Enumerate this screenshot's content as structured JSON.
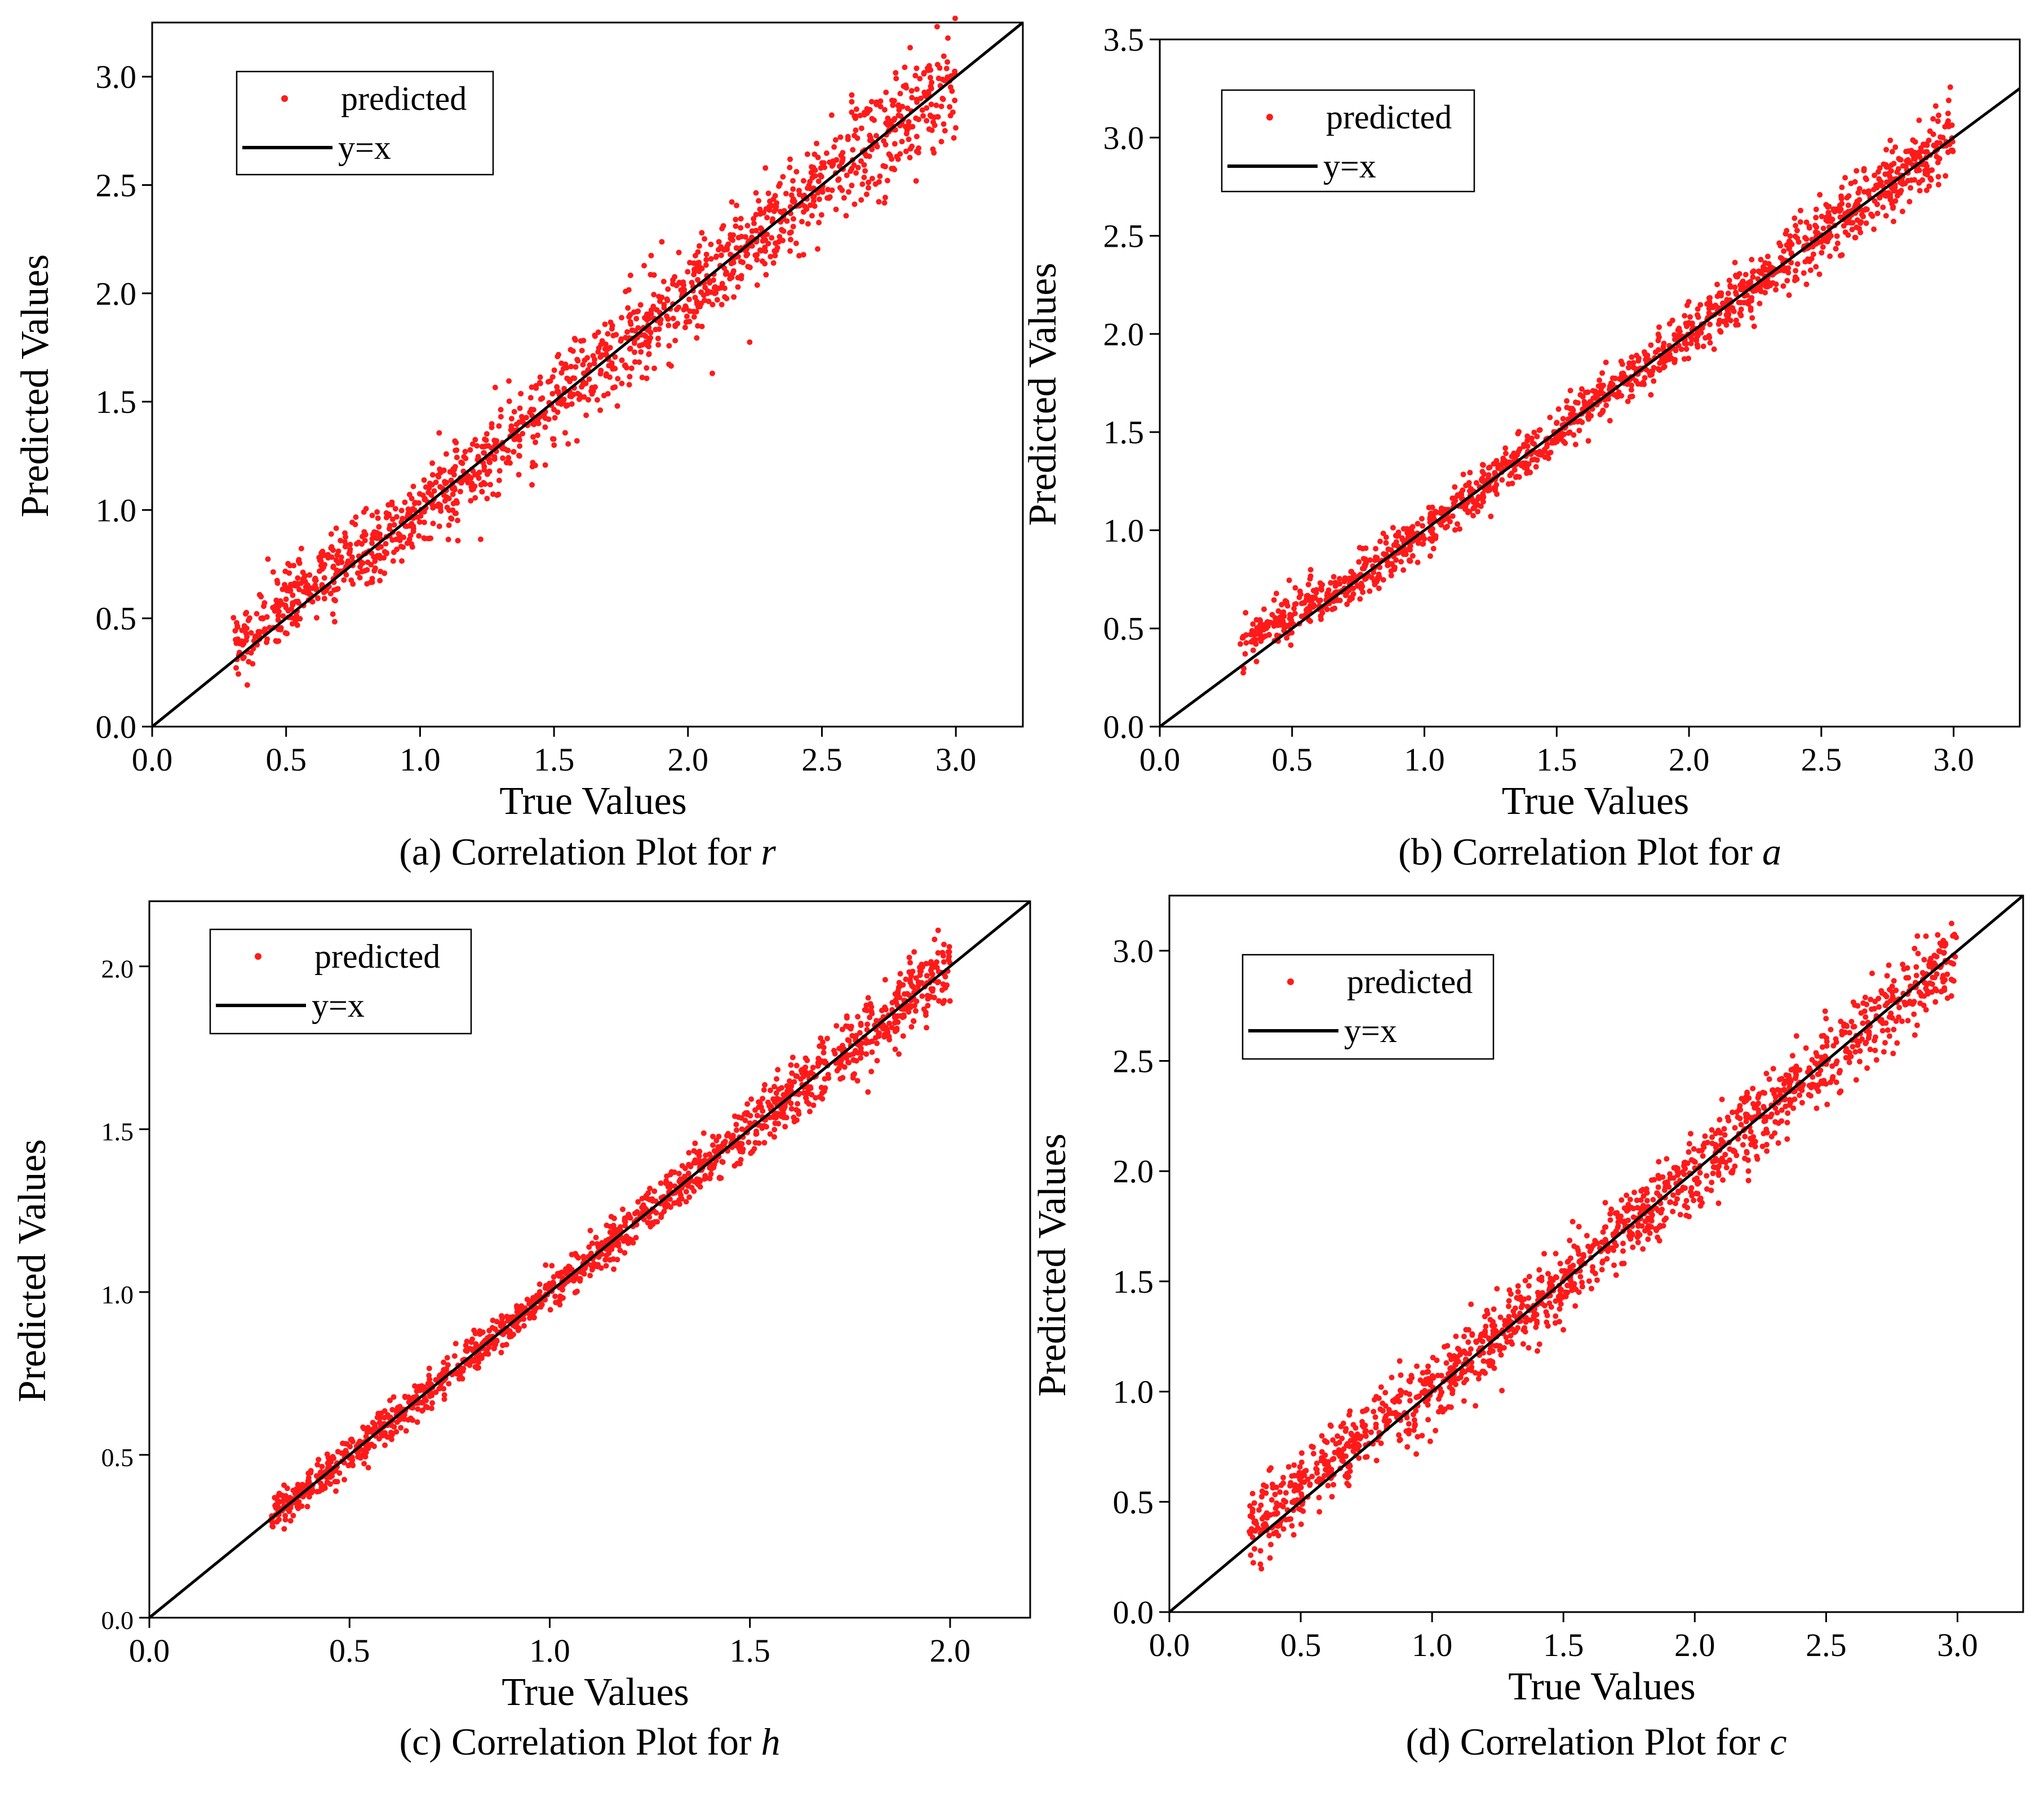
{
  "chart_data": [
    {
      "type": "scatter",
      "panel": "a",
      "title": "",
      "caption_prefix": "(a) Correlation Plot for ",
      "caption_var": "r",
      "xlabel": "True Values",
      "ylabel": "Predicted Values",
      "xlim": [
        0.0,
        3.25
      ],
      "ylim": [
        0.0,
        3.25
      ],
      "xticks": [
        "0.0",
        "0.5",
        "1.0",
        "1.5",
        "2.0",
        "2.5",
        "3.0"
      ],
      "yticks": [
        "0.0",
        "0.5",
        "1.0",
        "1.5",
        "2.0",
        "2.5",
        "3.0"
      ],
      "true_range": [
        0.3,
        3.0
      ],
      "noise": [
        0.08,
        0.1,
        0.13
      ],
      "num_points": 1450,
      "legend_position": "top-left",
      "series": [
        {
          "name": "predicted",
          "kind": "scatter",
          "color": "#ff1a1a"
        },
        {
          "name": "y=x",
          "kind": "line",
          "color": "#000000",
          "x": [
            0.0,
            3.25
          ],
          "y": [
            0.0,
            3.25
          ]
        }
      ]
    },
    {
      "type": "scatter",
      "panel": "b",
      "title": "",
      "caption_prefix": "(b) Correlation Plot for ",
      "caption_var": "a",
      "xlabel": "True Values",
      "ylabel": "Predicted Values",
      "xlim": [
        0.0,
        3.25
      ],
      "ylim": [
        0.0,
        3.5
      ],
      "xticks": [
        "0.0",
        "0.5",
        "1.0",
        "1.5",
        "2.0",
        "2.5",
        "3.0"
      ],
      "yticks": [
        "0.0",
        "0.5",
        "1.0",
        "1.5",
        "2.0",
        "2.5",
        "3.0",
        "3.5"
      ],
      "true_range": [
        0.3,
        3.0
      ],
      "noise": [
        0.06,
        0.06,
        0.09
      ],
      "num_points": 1450,
      "legend_position": "top-left",
      "series": [
        {
          "name": "predicted",
          "kind": "scatter",
          "color": "#ff1a1a"
        },
        {
          "name": "y=x",
          "kind": "line",
          "color": "#000000",
          "x": [
            0.0,
            3.25
          ],
          "y": [
            0.0,
            3.25
          ]
        }
      ]
    },
    {
      "type": "scatter",
      "panel": "c",
      "title": "",
      "caption_prefix": "(c) Correlation Plot for ",
      "caption_var": "h",
      "xlabel": "True Values",
      "ylabel": "Predicted Values",
      "xlim": [
        0.0,
        2.2
      ],
      "ylim": [
        0.0,
        2.2
      ],
      "xticks": [
        "0.0",
        "0.5",
        "1.0",
        "1.5",
        "2.0"
      ],
      "yticks": [
        "0.0",
        "0.5",
        "1.0",
        "1.5",
        "2.0"
      ],
      "true_range": [
        0.3,
        2.0
      ],
      "noise": [
        0.025,
        0.03,
        0.06
      ],
      "num_points": 1450,
      "legend_position": "top-left",
      "series": [
        {
          "name": "predicted",
          "kind": "scatter",
          "color": "#ff1a1a"
        },
        {
          "name": "y=x",
          "kind": "line",
          "color": "#000000",
          "x": [
            0.0,
            2.2
          ],
          "y": [
            0.0,
            2.2
          ]
        }
      ]
    },
    {
      "type": "scatter",
      "panel": "d",
      "title": "",
      "caption_prefix": "(d) Correlation Plot for ",
      "caption_var": "c",
      "xlabel": "True Values",
      "ylabel": "Predicted Values",
      "xlim": [
        0.0,
        3.25
      ],
      "ylim": [
        0.0,
        3.25
      ],
      "xticks": [
        "0.0",
        "0.5",
        "1.0",
        "1.5",
        "2.0",
        "2.5",
        "3.0"
      ],
      "yticks": [
        "0.0",
        "0.5",
        "1.0",
        "1.5",
        "2.0",
        "2.5",
        "3.0"
      ],
      "true_range": [
        0.3,
        3.0
      ],
      "noise": [
        0.08,
        0.08,
        0.09
      ],
      "num_points": 1450,
      "legend_position": "top-left",
      "series": [
        {
          "name": "predicted",
          "kind": "scatter",
          "color": "#ff1a1a"
        },
        {
          "name": "y=x",
          "kind": "line",
          "color": "#000000",
          "x": [
            0.0,
            3.25
          ],
          "y": [
            0.0,
            3.25
          ]
        }
      ]
    }
  ]
}
